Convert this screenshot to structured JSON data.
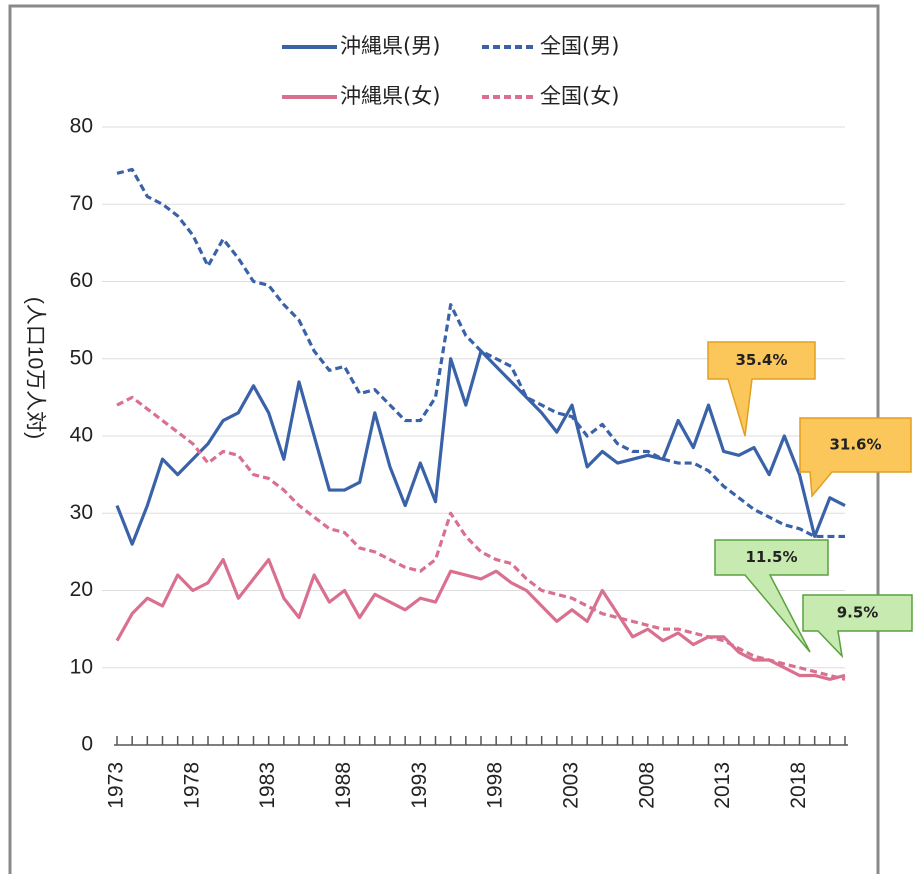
{
  "chart_data": {
    "type": "line",
    "y_label": "(人口10万人対)",
    "x": [
      1973,
      1974,
      1975,
      1976,
      1977,
      1978,
      1979,
      1980,
      1981,
      1982,
      1983,
      1984,
      1985,
      1986,
      1987,
      1988,
      1989,
      1990,
      1991,
      1992,
      1993,
      1994,
      1995,
      1996,
      1997,
      1998,
      1999,
      2000,
      2001,
      2002,
      2003,
      2004,
      2005,
      2006,
      2007,
      2008,
      2009,
      2010,
      2011,
      2012,
      2013,
      2014,
      2015,
      2016,
      2017,
      2018,
      2019,
      2020,
      2021
    ],
    "xlim": [
      1973,
      2021
    ],
    "xticks": [
      1973,
      1978,
      1983,
      1988,
      1993,
      1998,
      2003,
      2008,
      2013,
      2018
    ],
    "ylim": [
      0,
      80
    ],
    "yticks": [
      0,
      10,
      20,
      30,
      40,
      50,
      60,
      70,
      80
    ],
    "grid": true,
    "series": [
      {
        "name": "沖縄県(男)",
        "color": "#3a62a8",
        "style": "solid",
        "values": [
          31,
          26,
          31,
          37,
          35,
          37,
          39,
          42,
          43,
          46.5,
          43,
          37,
          47,
          40,
          33,
          33,
          34,
          43,
          36,
          31,
          36.5,
          31.5,
          50,
          44,
          51,
          49,
          47,
          45,
          43,
          40.5,
          44,
          36,
          38,
          36.5,
          37,
          37.5,
          37,
          42,
          38.5,
          44,
          38,
          37.5,
          38.5,
          35,
          40,
          35,
          27,
          32,
          31
        ]
      },
      {
        "name": "全国(男)",
        "color": "#3a62a8",
        "style": "dashed",
        "values": [
          74,
          74.5,
          71,
          70,
          68.5,
          66,
          62,
          65.5,
          63,
          60,
          59.5,
          57,
          55,
          51,
          48.5,
          49,
          45.5,
          46,
          44,
          42,
          42,
          45,
          57,
          53,
          51,
          50,
          49,
          45,
          44,
          43,
          42.5,
          40,
          41.5,
          39,
          38,
          38,
          37,
          36.5,
          36.5,
          35.5,
          33.5,
          32,
          30.5,
          29.5,
          28.5,
          28,
          27,
          27,
          27
        ]
      },
      {
        "name": "沖縄県(女)",
        "color": "#d9708f",
        "style": "solid",
        "values": [
          13.5,
          17,
          19,
          18,
          22,
          20,
          21,
          24,
          19,
          21.5,
          24,
          19,
          16.5,
          22,
          18.5,
          20,
          16.5,
          19.5,
          18.5,
          17.5,
          19,
          18.5,
          22.5,
          22,
          21.5,
          22.5,
          21,
          20,
          18,
          16,
          17.5,
          16,
          20,
          17,
          14,
          15,
          13.5,
          14.5,
          13,
          14,
          14,
          12,
          11,
          11,
          10,
          9,
          9,
          8.5,
          9
        ]
      },
      {
        "name": "全国(女)",
        "color": "#d9708f",
        "style": "dashed",
        "values": [
          44,
          45,
          43.5,
          42,
          40.5,
          39,
          36.5,
          38,
          37.5,
          35,
          34.5,
          33,
          31,
          29.5,
          28,
          27.5,
          25.5,
          25,
          24,
          23,
          22.5,
          24,
          30,
          27,
          25,
          24,
          23.5,
          21.5,
          20,
          19.5,
          19,
          18,
          17,
          16.5,
          16,
          15.5,
          15,
          15,
          14.5,
          14,
          13.5,
          12.5,
          11.5,
          11,
          10.5,
          10,
          9.5,
          9,
          8.5
        ]
      }
    ],
    "annotations": [
      "35.4%",
      "31.6%",
      "11.5%",
      "9.5%"
    ]
  }
}
